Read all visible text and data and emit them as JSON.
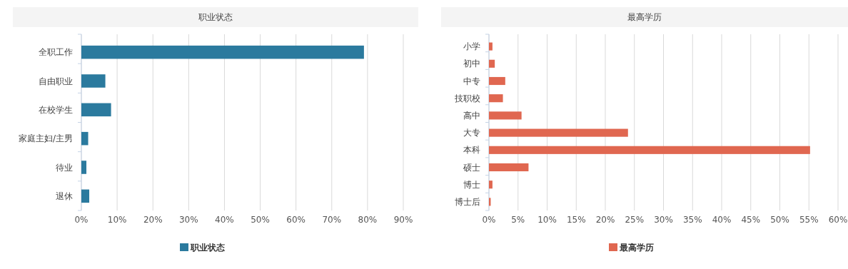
{
  "chart_data": [
    {
      "type": "bar",
      "orientation": "horizontal",
      "title": "职业状态",
      "categories": [
        "全职工作",
        "自由职业",
        "在校学生",
        "家庭主妇/主男",
        "待业",
        "退休"
      ],
      "series": [
        {
          "name": "职业状态",
          "color": "#2b7a9e",
          "values": [
            79.0,
            6.7,
            8.3,
            1.9,
            1.4,
            2.2
          ]
        }
      ],
      "xlim": [
        0,
        90
      ],
      "xticks": [
        {
          "value": 0,
          "label": "0%"
        },
        {
          "value": 10,
          "label": "10%"
        },
        {
          "value": 20,
          "label": "20%"
        },
        {
          "value": 30,
          "label": "30%"
        },
        {
          "value": 40,
          "label": "40%"
        },
        {
          "value": 50,
          "label": "50%"
        },
        {
          "value": 60,
          "label": "60%"
        },
        {
          "value": 70,
          "label": "70%"
        },
        {
          "value": 80,
          "label": "80%"
        },
        {
          "value": 90,
          "label": "90%"
        }
      ],
      "grid": "x",
      "legend": "bottom"
    },
    {
      "type": "bar",
      "orientation": "horizontal",
      "title": "最高学历",
      "categories": [
        "小学",
        "初中",
        "中专",
        "技职校",
        "高中",
        "大专",
        "本科",
        "硕士",
        "博士",
        "博士后"
      ],
      "series": [
        {
          "name": "最高学历",
          "color": "#e06750",
          "values": [
            0.6,
            1.0,
            2.8,
            2.4,
            5.6,
            23.9,
            55.2,
            6.8,
            0.6,
            0.3
          ]
        }
      ],
      "xlim": [
        0,
        60
      ],
      "xticks": [
        {
          "value": 0,
          "label": "0%"
        },
        {
          "value": 5,
          "label": "5%"
        },
        {
          "value": 10,
          "label": "10%"
        },
        {
          "value": 15,
          "label": "15%"
        },
        {
          "value": 20,
          "label": "20%"
        },
        {
          "value": 25,
          "label": "25%"
        },
        {
          "value": 30,
          "label": "30%"
        },
        {
          "value": 35,
          "label": "35%"
        },
        {
          "value": 40,
          "label": "40%"
        },
        {
          "value": 45,
          "label": "45%"
        },
        {
          "value": 50,
          "label": "50%"
        },
        {
          "value": 55,
          "label": "55%"
        },
        {
          "value": 60,
          "label": "60%"
        }
      ],
      "grid": "x",
      "legend": "bottom"
    }
  ]
}
